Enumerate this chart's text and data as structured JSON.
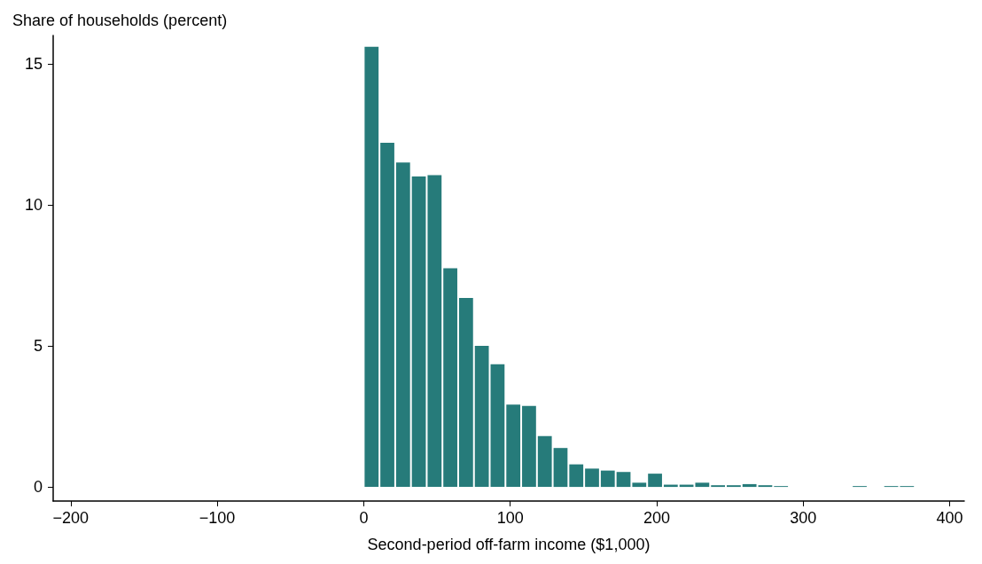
{
  "chart_data": {
    "type": "histogram",
    "xlabel": "Second-period off-farm income ($1,000)",
    "ylabel": "Share of households (percent)",
    "bins": [
      0,
      10.75,
      21.5,
      32.25,
      43,
      53.75,
      64.5,
      75.25,
      86,
      96.75,
      107.5,
      118.25,
      129,
      139.75,
      150.5,
      161.25,
      172,
      182.75,
      193.5,
      204.25,
      215,
      225.75,
      236.5,
      247.25,
      258,
      268.75,
      279.5,
      290.25,
      301,
      311.75,
      322.5,
      333.25,
      344,
      354.75,
      365.5,
      376.25
    ],
    "values": [
      15.6,
      12.2,
      11.5,
      11.0,
      11.05,
      7.75,
      6.7,
      5.0,
      4.35,
      2.92,
      2.87,
      1.8,
      1.38,
      0.8,
      0.65,
      0.58,
      0.53,
      0.15,
      0.47,
      0.08,
      0.08,
      0.15,
      0.06,
      0.06,
      0.1,
      0.06,
      0.03,
      0,
      0,
      0,
      0,
      0.03,
      0,
      0.03,
      0.03
    ],
    "color": "#267b7a",
    "xlim": [
      -212,
      410
    ],
    "xticks": [
      {
        "value": -200,
        "label": "−200"
      },
      {
        "value": -100,
        "label": "−100"
      },
      0,
      100,
      200,
      300,
      400
    ],
    "ylim": [
      -0.5,
      16
    ],
    "yticks": [
      0,
      5,
      10,
      15
    ],
    "grid": false
  }
}
